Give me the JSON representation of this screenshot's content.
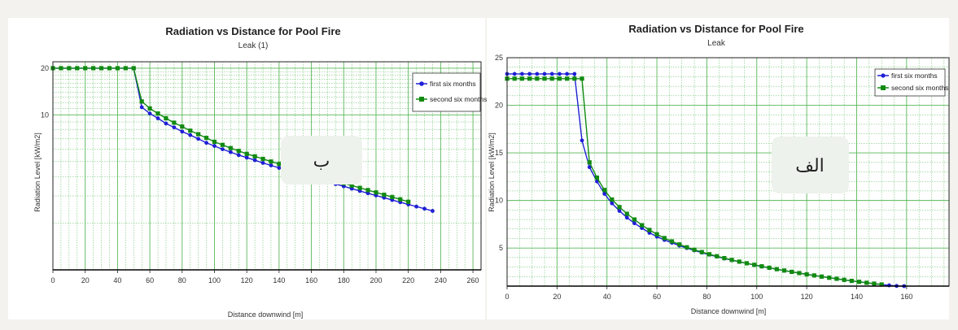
{
  "chart_data": [
    {
      "type": "line",
      "title": "Radiation vs Distance for Pool Fire",
      "subtitle": "Leak (1)",
      "xlabel": "Distance downwind [m]",
      "ylabel": "Radiation Level [kW/m2]",
      "xlim": [
        0,
        265
      ],
      "ylim": [
        1,
        22
      ],
      "y_scale": "log",
      "xticks": [
        0,
        20,
        40,
        60,
        80,
        100,
        120,
        140,
        160,
        180,
        200,
        220,
        240,
        260
      ],
      "yticks": [
        10,
        20
      ],
      "grid": true,
      "legend_position": "top-right",
      "badge": "ب",
      "series": [
        {
          "name": "first six months",
          "color": "#1f1fd6",
          "marker": "circle",
          "points": [
            [
              0,
              20
            ],
            [
              5,
              20
            ],
            [
              10,
              20
            ],
            [
              15,
              20
            ],
            [
              20,
              20
            ],
            [
              25,
              20
            ],
            [
              30,
              20
            ],
            [
              35,
              20
            ],
            [
              40,
              20
            ],
            [
              45,
              20
            ],
            [
              50,
              20
            ],
            [
              55,
              11.2
            ],
            [
              60,
              10.2
            ],
            [
              65,
              9.5
            ],
            [
              70,
              8.8
            ],
            [
              75,
              8.3
            ],
            [
              80,
              7.8
            ],
            [
              85,
              7.4
            ],
            [
              90,
              7.0
            ],
            [
              95,
              6.6
            ],
            [
              100,
              6.3
            ],
            [
              105,
              6.0
            ],
            [
              110,
              5.75
            ],
            [
              115,
              5.5
            ],
            [
              120,
              5.3
            ],
            [
              125,
              5.1
            ],
            [
              130,
              4.9
            ],
            [
              135,
              4.72
            ],
            [
              140,
              4.55
            ],
            [
              145,
              4.4
            ],
            [
              150,
              4.25
            ],
            [
              155,
              4.1
            ],
            [
              160,
              3.95
            ],
            [
              165,
              3.82
            ],
            [
              170,
              3.7
            ],
            [
              175,
              3.58
            ],
            [
              180,
              3.46
            ],
            [
              185,
              3.34
            ],
            [
              190,
              3.23
            ],
            [
              195,
              3.12
            ],
            [
              200,
              3.02
            ],
            [
              205,
              2.92
            ],
            [
              210,
              2.82
            ],
            [
              215,
              2.73
            ],
            [
              220,
              2.64
            ],
            [
              225,
              2.56
            ],
            [
              230,
              2.48
            ],
            [
              235,
              2.4
            ]
          ]
        },
        {
          "name": "second six months",
          "color": "#118a11",
          "marker": "square",
          "points": [
            [
              0,
              20
            ],
            [
              5,
              20
            ],
            [
              10,
              20
            ],
            [
              15,
              20
            ],
            [
              20,
              20
            ],
            [
              25,
              20
            ],
            [
              30,
              20
            ],
            [
              35,
              20
            ],
            [
              40,
              20
            ],
            [
              45,
              20
            ],
            [
              50,
              20
            ],
            [
              55,
              12.2
            ],
            [
              60,
              11.0
            ],
            [
              65,
              10.2
            ],
            [
              70,
              9.5
            ],
            [
              75,
              8.9
            ],
            [
              80,
              8.4
            ],
            [
              85,
              7.9
            ],
            [
              90,
              7.5
            ],
            [
              95,
              7.1
            ],
            [
              100,
              6.7
            ],
            [
              105,
              6.4
            ],
            [
              110,
              6.1
            ],
            [
              115,
              5.85
            ],
            [
              120,
              5.6
            ],
            [
              125,
              5.4
            ],
            [
              130,
              5.2
            ],
            [
              135,
              5.0
            ],
            [
              140,
              4.82
            ],
            [
              145,
              4.65
            ],
            [
              150,
              4.48
            ],
            [
              155,
              4.32
            ],
            [
              160,
              4.17
            ],
            [
              165,
              4.02
            ],
            [
              170,
              3.88
            ],
            [
              175,
              3.75
            ],
            [
              180,
              3.62
            ],
            [
              185,
              3.5
            ],
            [
              190,
              3.38
            ],
            [
              195,
              3.27
            ],
            [
              200,
              3.16
            ],
            [
              205,
              3.05
            ],
            [
              210,
              2.95
            ],
            [
              215,
              2.85
            ],
            [
              220,
              2.75
            ]
          ]
        }
      ]
    },
    {
      "type": "line",
      "title": "Radiation vs Distance for Pool Fire",
      "subtitle": "Leak",
      "xlabel": "Distance downwind [m]",
      "ylabel": "Radiation Level [kW/m2]",
      "xlim": [
        0,
        177
      ],
      "ylim": [
        1,
        25
      ],
      "y_scale": "linear",
      "xticks": [
        0,
        20,
        40,
        60,
        80,
        100,
        120,
        140,
        160
      ],
      "yticks": [
        5,
        10,
        15,
        20,
        25
      ],
      "grid": true,
      "legend_position": "top-right",
      "badge": "الف",
      "series": [
        {
          "name": "first six months",
          "color": "#1f1fd6",
          "marker": "circle",
          "points": [
            [
              0,
              23.3
            ],
            [
              3,
              23.3
            ],
            [
              6,
              23.3
            ],
            [
              9,
              23.3
            ],
            [
              12,
              23.3
            ],
            [
              15,
              23.3
            ],
            [
              18,
              23.3
            ],
            [
              21,
              23.3
            ],
            [
              24,
              23.3
            ],
            [
              27,
              23.3
            ],
            [
              30,
              16.3
            ],
            [
              33,
              13.5
            ],
            [
              36,
              12.0
            ],
            [
              39,
              10.7
            ],
            [
              42,
              9.7
            ],
            [
              45,
              8.9
            ],
            [
              48,
              8.2
            ],
            [
              51,
              7.6
            ],
            [
              54,
              7.1
            ],
            [
              57,
              6.6
            ],
            [
              60,
              6.2
            ],
            [
              63,
              5.85
            ],
            [
              66,
              5.55
            ],
            [
              69,
              5.25
            ],
            [
              72,
              5.0
            ],
            [
              75,
              4.75
            ],
            [
              78,
              4.52
            ],
            [
              81,
              4.3
            ],
            [
              84,
              4.1
            ],
            [
              87,
              3.9
            ],
            [
              90,
              3.72
            ],
            [
              93,
              3.55
            ],
            [
              96,
              3.38
            ],
            [
              99,
              3.22
            ],
            [
              102,
              3.06
            ],
            [
              105,
              2.91
            ],
            [
              108,
              2.77
            ],
            [
              111,
              2.63
            ],
            [
              114,
              2.5
            ],
            [
              117,
              2.37
            ],
            [
              120,
              2.24
            ],
            [
              123,
              2.12
            ],
            [
              126,
              2.0
            ],
            [
              129,
              1.88
            ],
            [
              132,
              1.77
            ],
            [
              135,
              1.66
            ],
            [
              138,
              1.55
            ],
            [
              141,
              1.45
            ],
            [
              144,
              1.35
            ],
            [
              147,
              1.25
            ],
            [
              150,
              1.16
            ],
            [
              153,
              1.08
            ],
            [
              156,
              1.02
            ],
            [
              159,
              1.0
            ]
          ]
        },
        {
          "name": "second six months",
          "color": "#118a11",
          "marker": "square",
          "points": [
            [
              0,
              22.8
            ],
            [
              3,
              22.8
            ],
            [
              6,
              22.8
            ],
            [
              9,
              22.8
            ],
            [
              12,
              22.8
            ],
            [
              15,
              22.8
            ],
            [
              18,
              22.8
            ],
            [
              21,
              22.8
            ],
            [
              24,
              22.8
            ],
            [
              27,
              22.8
            ],
            [
              30,
              22.8
            ],
            [
              33,
              14.0
            ],
            [
              36,
              12.4
            ],
            [
              39,
              11.1
            ],
            [
              42,
              10.1
            ],
            [
              45,
              9.3
            ],
            [
              48,
              8.6
            ],
            [
              51,
              8.0
            ],
            [
              54,
              7.4
            ],
            [
              57,
              6.9
            ],
            [
              60,
              6.45
            ],
            [
              63,
              6.05
            ],
            [
              66,
              5.7
            ],
            [
              69,
              5.38
            ],
            [
              72,
              5.08
            ],
            [
              75,
              4.82
            ],
            [
              78,
              4.58
            ],
            [
              81,
              4.35
            ],
            [
              84,
              4.14
            ],
            [
              87,
              3.94
            ],
            [
              90,
              3.75
            ],
            [
              93,
              3.57
            ],
            [
              96,
              3.4
            ],
            [
              99,
              3.24
            ],
            [
              102,
              3.08
            ],
            [
              105,
              2.93
            ],
            [
              108,
              2.78
            ],
            [
              111,
              2.64
            ],
            [
              114,
              2.5
            ],
            [
              117,
              2.37
            ],
            [
              120,
              2.24
            ],
            [
              123,
              2.12
            ],
            [
              126,
              2.0
            ],
            [
              129,
              1.88
            ],
            [
              132,
              1.77
            ],
            [
              135,
              1.66
            ],
            [
              138,
              1.55
            ],
            [
              141,
              1.45
            ],
            [
              144,
              1.35
            ],
            [
              147,
              1.26
            ],
            [
              150,
              1.17
            ]
          ]
        }
      ]
    }
  ]
}
